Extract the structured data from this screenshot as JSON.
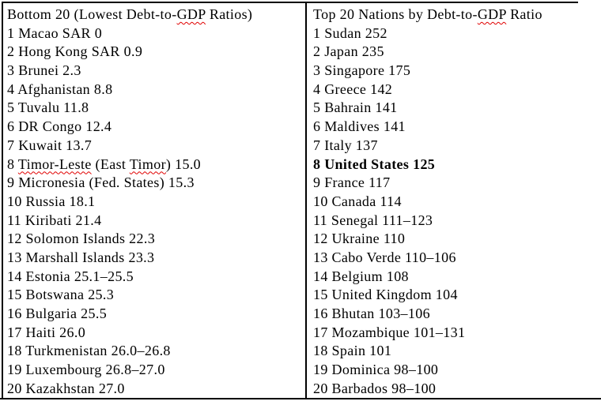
{
  "colors": {
    "background": "#ffffff",
    "text": "#000000",
    "table_border": "#000000",
    "spellcheck_underline": "#e00000"
  },
  "left_panel": {
    "header_segments": [
      {
        "text": "Bottom 20 (Lowest Debt-to-"
      },
      {
        "text": "GDP",
        "misspelled": true
      },
      {
        "text": " Ratios)"
      }
    ],
    "rows": [
      {
        "text": "1 Macao SAR 0"
      },
      {
        "text": "2 Hong Kong SAR 0.9"
      },
      {
        "text": "3 Brunei 2.3"
      },
      {
        "text": "4 Afghanistan 8.8"
      },
      {
        "text": "5 Tuvalu 11.8"
      },
      {
        "text": "6 DR Congo 12.4"
      },
      {
        "text": "7 Kuwait 13.7"
      },
      {
        "segments": [
          {
            "text": "8 "
          },
          {
            "text": "Timor-Leste",
            "misspelled": true
          },
          {
            "text": " (East "
          },
          {
            "text": "Timor",
            "misspelled": true
          },
          {
            "text": ") 15.0"
          }
        ]
      },
      {
        "text": "9 Micronesia (Fed. States) 15.3"
      },
      {
        "text": "10 Russia 18.1"
      },
      {
        "text": "11 Kiribati 21.4"
      },
      {
        "text": "12 Solomon Islands 22.3"
      },
      {
        "text": "13 Marshall Islands 23.3"
      },
      {
        "text": "14 Estonia 25.1–25.5"
      },
      {
        "text": "15 Botswana 25.3"
      },
      {
        "text": "16 Bulgaria 25.5"
      },
      {
        "text": "17 Haiti 26.0"
      },
      {
        "text": "18 Turkmenistan 26.0–26.8"
      },
      {
        "text": "19 Luxembourg 26.8–27.0"
      },
      {
        "text": "20 Kazakhstan 27.0"
      }
    ]
  },
  "right_panel": {
    "header_segments": [
      {
        "text": "Top 20 Nations by Debt-to-"
      },
      {
        "text": "GDP",
        "misspelled": true
      },
      {
        "text": " Ratio"
      }
    ],
    "rows": [
      {
        "text": "1 Sudan 252"
      },
      {
        "text": "2 Japan 235"
      },
      {
        "text": "3 Singapore 175"
      },
      {
        "text": "4 Greece 142"
      },
      {
        "text": "5 Bahrain 141"
      },
      {
        "text": "6 Maldives 141"
      },
      {
        "text": "7 Italy 137"
      },
      {
        "text": "8 United States 125",
        "bold": true
      },
      {
        "text": "9 France 117"
      },
      {
        "text": "10 Canada 114"
      },
      {
        "text": "11 Senegal 111–123"
      },
      {
        "text": "12 Ukraine 110"
      },
      {
        "text": "13 Cabo Verde 110–106"
      },
      {
        "text": "14 Belgium 108"
      },
      {
        "text": "15 United Kingdom 104"
      },
      {
        "text": "16 Bhutan 103–106"
      },
      {
        "text": "17 Mozambique 101–131"
      },
      {
        "text": "18 Spain 101"
      },
      {
        "text": "19 Dominica 98–100"
      },
      {
        "text": "20 Barbados 98–100"
      }
    ]
  }
}
